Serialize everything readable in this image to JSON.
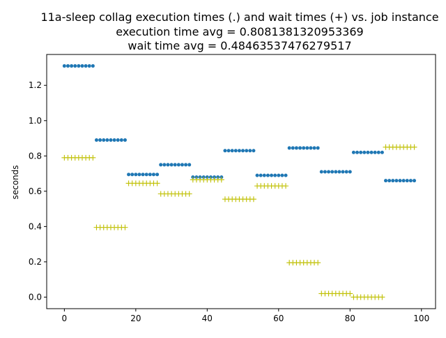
{
  "chart_data": {
    "type": "scatter",
    "title": [
      "11a-sleep collag execution times (.) and wait times (+) vs. job instance",
      "execution time avg = 0.8081381320953369",
      "wait time avg = 0.48463537476279517"
    ],
    "xlabel": "",
    "ylabel": "seconds",
    "xlim": [
      -4.95,
      103.95
    ],
    "ylim": [
      -0.0655,
      1.375
    ],
    "xticks": [
      0,
      20,
      40,
      60,
      80,
      100
    ],
    "yticks": [
      0.0,
      0.2,
      0.4,
      0.6,
      0.8,
      1.0,
      1.2
    ],
    "grid": false,
    "series": [
      {
        "marker": "dot",
        "color": "#1f77b4",
        "groups": [
          {
            "x_start": 0,
            "x_end": 8,
            "y": 1.31
          },
          {
            "x_start": 9,
            "x_end": 17,
            "y": 0.89
          },
          {
            "x_start": 18,
            "x_end": 26,
            "y": 0.695
          },
          {
            "x_start": 27,
            "x_end": 35,
            "y": 0.75
          },
          {
            "x_start": 36,
            "x_end": 44,
            "y": 0.68
          },
          {
            "x_start": 45,
            "x_end": 53,
            "y": 0.83
          },
          {
            "x_start": 54,
            "x_end": 62,
            "y": 0.69
          },
          {
            "x_start": 63,
            "x_end": 71,
            "y": 0.845
          },
          {
            "x_start": 72,
            "x_end": 80,
            "y": 0.71
          },
          {
            "x_start": 81,
            "x_end": 89,
            "y": 0.82
          },
          {
            "x_start": 90,
            "x_end": 98,
            "y": 0.66
          }
        ]
      },
      {
        "marker": "plus",
        "color": "#bfbf00",
        "groups": [
          {
            "x_start": 0,
            "x_end": 8,
            "y": 0.79
          },
          {
            "x_start": 9,
            "x_end": 17,
            "y": 0.395
          },
          {
            "x_start": 18,
            "x_end": 26,
            "y": 0.645
          },
          {
            "x_start": 27,
            "x_end": 35,
            "y": 0.585
          },
          {
            "x_start": 36,
            "x_end": 44,
            "y": 0.665
          },
          {
            "x_start": 45,
            "x_end": 53,
            "y": 0.555
          },
          {
            "x_start": 54,
            "x_end": 62,
            "y": 0.63
          },
          {
            "x_start": 63,
            "x_end": 71,
            "y": 0.195
          },
          {
            "x_start": 72,
            "x_end": 80,
            "y": 0.02
          },
          {
            "x_start": 81,
            "x_end": 89,
            "y": 0.0
          },
          {
            "x_start": 90,
            "x_end": 98,
            "y": 0.85
          }
        ]
      }
    ]
  }
}
